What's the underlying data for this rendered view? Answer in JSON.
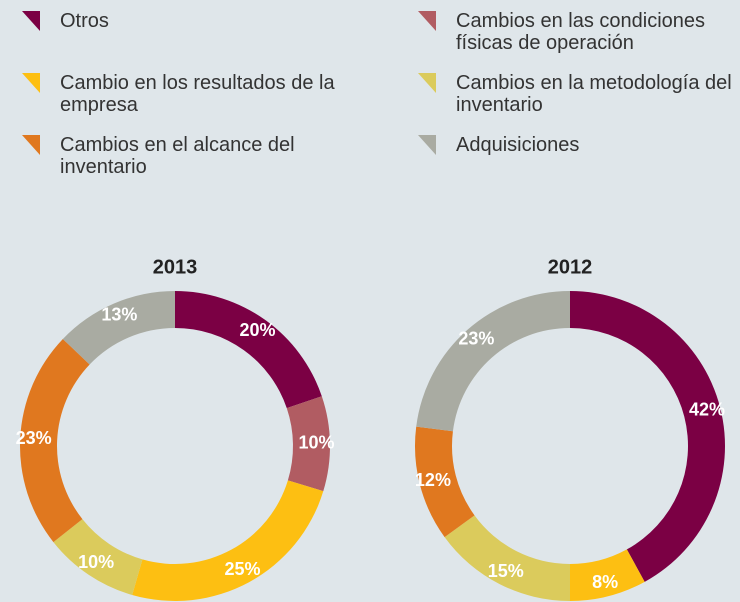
{
  "legend": [
    {
      "name": "Otros",
      "color": "#7b0044"
    },
    {
      "name": "Cambios en las condiciones físicas de operación",
      "color": "#b15c62"
    },
    {
      "name": "Cambio en los resultados de la empresa",
      "color": "#fdbf12"
    },
    {
      "name": "Cambios en la metodología del inventario",
      "color": "#dbcb5c"
    },
    {
      "name": "Cambios en el alcance del inventario",
      "color": "#e0781f"
    },
    {
      "name": "Adquisiciones",
      "color": "#a9aba2"
    }
  ],
  "chart_data": [
    {
      "type": "pie",
      "title": "2013",
      "values": [
        20,
        10,
        25,
        10,
        23,
        13
      ],
      "value_labels": [
        "20%",
        "10%",
        "25%",
        "10%",
        "23%",
        "13%"
      ]
    },
    {
      "type": "pie",
      "title": "2012",
      "values": [
        42,
        null,
        8,
        15,
        12,
        23
      ],
      "value_labels": [
        "42%",
        null,
        "8%",
        "15%",
        "12%",
        "23%"
      ]
    }
  ]
}
